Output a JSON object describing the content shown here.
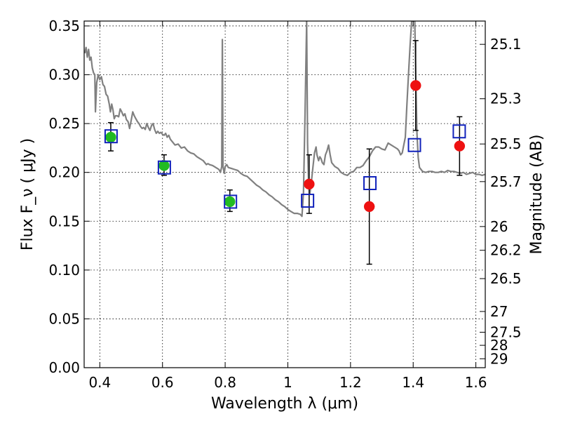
{
  "chart_data": {
    "type": "scatter",
    "title": "",
    "xlabel": "Wavelength  λ (μm)",
    "ylabel": "Flux  F_ν  ( μJy )",
    "ylabel_right": "Magnitude (AB)",
    "xlim": [
      0.35,
      1.63
    ],
    "ylim": [
      0.0,
      0.355
    ],
    "grid": true,
    "xticks": [
      {
        "value": 0.4,
        "label": "0.4"
      },
      {
        "value": 0.6,
        "label": "0.6"
      },
      {
        "value": 0.8,
        "label": "0.8"
      },
      {
        "value": 1.0,
        "label": "1"
      },
      {
        "value": 1.2,
        "label": "1.2"
      },
      {
        "value": 1.4,
        "label": "1.4"
      },
      {
        "value": 1.6,
        "label": "1.6"
      }
    ],
    "yticks": [
      {
        "value": 0.0,
        "label": "0.00"
      },
      {
        "value": 0.05,
        "label": "0.05"
      },
      {
        "value": 0.1,
        "label": "0.10"
      },
      {
        "value": 0.15,
        "label": "0.15"
      },
      {
        "value": 0.2,
        "label": "0.20"
      },
      {
        "value": 0.25,
        "label": "0.25"
      },
      {
        "value": 0.3,
        "label": "0.30"
      },
      {
        "value": 0.35,
        "label": "0.35"
      }
    ],
    "right_ticks": [
      {
        "value": 25.1,
        "label": "25.1"
      },
      {
        "value": 25.3,
        "label": "25.3"
      },
      {
        "value": 25.5,
        "label": "25.5"
      },
      {
        "value": 25.7,
        "label": "25.7"
      },
      {
        "value": 26.0,
        "label": "26"
      },
      {
        "value": 26.2,
        "label": "26.2"
      },
      {
        "value": 26.5,
        "label": "26.5"
      },
      {
        "value": 27.0,
        "label": "27"
      },
      {
        "value": 27.5,
        "label": "27.5"
      },
      {
        "value": 28.0,
        "label": "28"
      },
      {
        "value": 29.0,
        "label": "29"
      }
    ],
    "model_spectrum": {
      "color": "#808080",
      "points": [
        [
          0.352,
          0.322
        ],
        [
          0.356,
          0.328
        ],
        [
          0.36,
          0.318
        ],
        [
          0.364,
          0.326
        ],
        [
          0.368,
          0.315
        ],
        [
          0.372,
          0.318
        ],
        [
          0.376,
          0.307
        ],
        [
          0.38,
          0.302
        ],
        [
          0.384,
          0.3
        ],
        [
          0.386,
          0.262
        ],
        [
          0.39,
          0.292
        ],
        [
          0.395,
          0.3
        ],
        [
          0.4,
          0.295
        ],
        [
          0.405,
          0.298
        ],
        [
          0.41,
          0.29
        ],
        [
          0.415,
          0.288
        ],
        [
          0.42,
          0.28
        ],
        [
          0.425,
          0.278
        ],
        [
          0.43,
          0.27
        ],
        [
          0.434,
          0.262
        ],
        [
          0.438,
          0.27
        ],
        [
          0.442,
          0.264
        ],
        [
          0.446,
          0.255
        ],
        [
          0.45,
          0.258
        ],
        [
          0.455,
          0.258
        ],
        [
          0.46,
          0.257
        ],
        [
          0.465,
          0.265
        ],
        [
          0.47,
          0.262
        ],
        [
          0.475,
          0.258
        ],
        [
          0.48,
          0.26
        ],
        [
          0.485,
          0.254
        ],
        [
          0.49,
          0.252
        ],
        [
          0.495,
          0.245
        ],
        [
          0.5,
          0.253
        ],
        [
          0.505,
          0.262
        ],
        [
          0.51,
          0.258
        ],
        [
          0.515,
          0.255
        ],
        [
          0.52,
          0.252
        ],
        [
          0.525,
          0.25
        ],
        [
          0.53,
          0.247
        ],
        [
          0.535,
          0.245
        ],
        [
          0.54,
          0.246
        ],
        [
          0.545,
          0.244
        ],
        [
          0.55,
          0.25
        ],
        [
          0.555,
          0.246
        ],
        [
          0.56,
          0.243
        ],
        [
          0.565,
          0.248
        ],
        [
          0.57,
          0.25
        ],
        [
          0.575,
          0.244
        ],
        [
          0.58,
          0.24
        ],
        [
          0.585,
          0.242
        ],
        [
          0.59,
          0.24
        ],
        [
          0.595,
          0.241
        ],
        [
          0.6,
          0.239
        ],
        [
          0.605,
          0.238
        ],
        [
          0.61,
          0.24
        ],
        [
          0.615,
          0.236
        ],
        [
          0.62,
          0.238
        ],
        [
          0.625,
          0.234
        ],
        [
          0.63,
          0.232
        ],
        [
          0.64,
          0.228
        ],
        [
          0.65,
          0.229
        ],
        [
          0.66,
          0.225
        ],
        [
          0.67,
          0.226
        ],
        [
          0.68,
          0.222
        ],
        [
          0.69,
          0.22
        ],
        [
          0.7,
          0.219
        ],
        [
          0.71,
          0.216
        ],
        [
          0.72,
          0.214
        ],
        [
          0.73,
          0.212
        ],
        [
          0.74,
          0.208
        ],
        [
          0.745,
          0.209
        ],
        [
          0.75,
          0.208
        ],
        [
          0.76,
          0.207
        ],
        [
          0.77,
          0.205
        ],
        [
          0.78,
          0.203
        ],
        [
          0.785,
          0.2
        ],
        [
          0.789,
          0.206
        ],
        [
          0.791,
          0.336
        ],
        [
          0.793,
          0.206
        ],
        [
          0.797,
          0.199
        ],
        [
          0.8,
          0.206
        ],
        [
          0.805,
          0.208
        ],
        [
          0.81,
          0.205
        ],
        [
          0.82,
          0.204
        ],
        [
          0.83,
          0.203
        ],
        [
          0.84,
          0.202
        ],
        [
          0.85,
          0.199
        ],
        [
          0.86,
          0.197
        ],
        [
          0.87,
          0.196
        ],
        [
          0.88,
          0.193
        ],
        [
          0.89,
          0.19
        ],
        [
          0.9,
          0.187
        ],
        [
          0.91,
          0.185
        ],
        [
          0.92,
          0.182
        ],
        [
          0.93,
          0.18
        ],
        [
          0.94,
          0.177
        ],
        [
          0.95,
          0.175
        ],
        [
          0.96,
          0.172
        ],
        [
          0.97,
          0.17
        ],
        [
          0.98,
          0.167
        ],
        [
          0.99,
          0.165
        ],
        [
          1.0,
          0.162
        ],
        [
          1.01,
          0.16
        ],
        [
          1.02,
          0.158
        ],
        [
          1.03,
          0.158
        ],
        [
          1.04,
          0.157
        ],
        [
          1.045,
          0.155
        ],
        [
          1.05,
          0.18
        ],
        [
          1.055,
          0.26
        ],
        [
          1.06,
          0.355
        ],
        [
          1.063,
          0.23
        ],
        [
          1.066,
          0.188
        ],
        [
          1.07,
          0.178
        ],
        [
          1.075,
          0.19
        ],
        [
          1.08,
          0.205
        ],
        [
          1.085,
          0.22
        ],
        [
          1.09,
          0.226
        ],
        [
          1.093,
          0.218
        ],
        [
          1.098,
          0.212
        ],
        [
          1.102,
          0.216
        ],
        [
          1.106,
          0.214
        ],
        [
          1.11,
          0.21
        ],
        [
          1.115,
          0.208
        ],
        [
          1.12,
          0.218
        ],
        [
          1.125,
          0.222
        ],
        [
          1.13,
          0.228
        ],
        [
          1.135,
          0.218
        ],
        [
          1.14,
          0.21
        ],
        [
          1.15,
          0.206
        ],
        [
          1.16,
          0.204
        ],
        [
          1.17,
          0.2
        ],
        [
          1.18,
          0.198
        ],
        [
          1.19,
          0.197
        ],
        [
          1.2,
          0.2
        ],
        [
          1.21,
          0.201
        ],
        [
          1.22,
          0.205
        ],
        [
          1.23,
          0.205
        ],
        [
          1.24,
          0.207
        ],
        [
          1.25,
          0.212
        ],
        [
          1.26,
          0.216
        ],
        [
          1.27,
          0.222
        ],
        [
          1.28,
          0.226
        ],
        [
          1.29,
          0.226
        ],
        [
          1.3,
          0.224
        ],
        [
          1.31,
          0.223
        ],
        [
          1.32,
          0.23
        ],
        [
          1.33,
          0.228
        ],
        [
          1.34,
          0.226
        ],
        [
          1.35,
          0.224
        ],
        [
          1.355,
          0.222
        ],
        [
          1.36,
          0.218
        ],
        [
          1.365,
          0.22
        ],
        [
          1.37,
          0.228
        ],
        [
          1.375,
          0.236
        ],
        [
          1.38,
          0.27
        ],
        [
          1.385,
          0.3
        ],
        [
          1.39,
          0.33
        ],
        [
          1.395,
          0.355
        ],
        [
          1.4,
          0.355
        ],
        [
          1.405,
          0.355
        ],
        [
          1.408,
          0.3
        ],
        [
          1.412,
          0.24
        ],
        [
          1.416,
          0.215
        ],
        [
          1.42,
          0.205
        ],
        [
          1.43,
          0.201
        ],
        [
          1.44,
          0.2
        ],
        [
          1.45,
          0.201
        ],
        [
          1.46,
          0.201
        ],
        [
          1.47,
          0.2
        ],
        [
          1.48,
          0.2
        ],
        [
          1.49,
          0.201
        ],
        [
          1.5,
          0.2
        ],
        [
          1.51,
          0.202
        ],
        [
          1.52,
          0.201
        ],
        [
          1.53,
          0.201
        ],
        [
          1.54,
          0.2
        ],
        [
          1.55,
          0.199
        ],
        [
          1.56,
          0.2
        ],
        [
          1.57,
          0.198
        ],
        [
          1.58,
          0.199
        ],
        [
          1.59,
          0.2
        ],
        [
          1.6,
          0.198
        ],
        [
          1.61,
          0.198
        ],
        [
          1.62,
          0.197
        ],
        [
          1.63,
          0.198
        ]
      ]
    },
    "series": [
      {
        "marker": "circle",
        "color": "#22bb22",
        "points": [
          {
            "x": 0.435,
            "y": 0.236,
            "err_low": 0.014,
            "err_high": 0.015
          },
          {
            "x": 0.605,
            "y": 0.207,
            "err_low": 0.01,
            "err_high": 0.011
          },
          {
            "x": 0.815,
            "y": 0.17,
            "err_low": 0.01,
            "err_high": 0.012
          }
        ]
      },
      {
        "marker": "circle",
        "color": "#ee1111",
        "points": [
          {
            "x": 1.068,
            "y": 0.188,
            "err_low": 0.03,
            "err_high": 0.03
          },
          {
            "x": 1.26,
            "y": 0.165,
            "err_low": 0.059,
            "err_high": 0.059
          },
          {
            "x": 1.408,
            "y": 0.289,
            "err_low": 0.046,
            "err_high": 0.046
          },
          {
            "x": 1.548,
            "y": 0.227,
            "err_low": 0.03,
            "err_high": 0.03
          }
        ]
      },
      {
        "marker": "square-open",
        "color": "#1122bb",
        "points": [
          {
            "x": 0.436,
            "y": 0.237
          },
          {
            "x": 0.606,
            "y": 0.205
          },
          {
            "x": 0.817,
            "y": 0.17
          },
          {
            "x": 1.063,
            "y": 0.171
          },
          {
            "x": 1.262,
            "y": 0.189
          },
          {
            "x": 1.404,
            "y": 0.228
          },
          {
            "x": 1.547,
            "y": 0.242
          }
        ]
      }
    ]
  }
}
